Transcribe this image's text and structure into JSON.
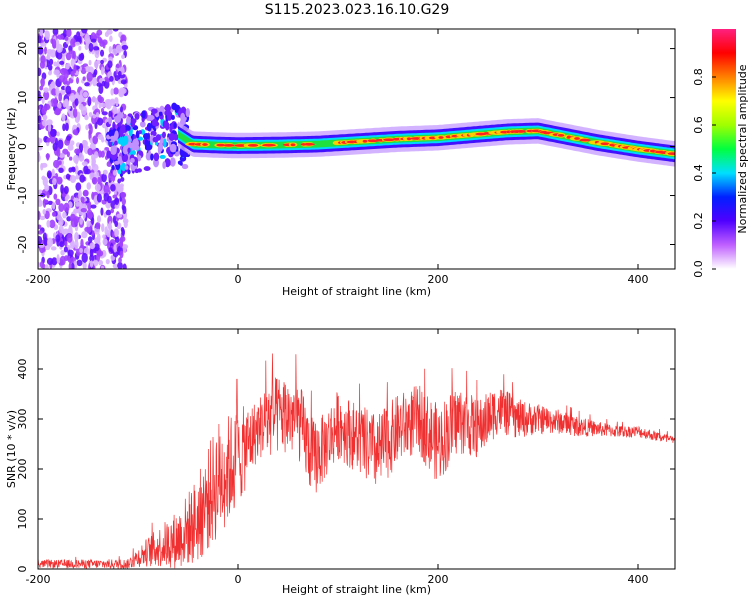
{
  "title": "S115.2023.023.16.10.G29",
  "chart_data": [
    {
      "type": "heatmap",
      "xlabel": "Height of straight line (km)",
      "ylabel": "Frequency (Hz)",
      "xlim": [
        -200,
        437
      ],
      "ylim": [
        -25,
        24
      ],
      "x_ticks": [
        -200,
        0,
        200,
        400
      ],
      "y_ticks": [
        20,
        10,
        0,
        -10,
        -20
      ],
      "colorbar": {
        "label": "Normalized spectral amplitude",
        "range": [
          0,
          1
        ],
        "ticks": [
          "0.0",
          "0.2",
          "0.4",
          "0.6",
          "0.8"
        ],
        "tick_values": [
          0,
          0.2,
          0.4,
          0.6,
          0.8
        ],
        "colors": [
          "#ffffff",
          "#c060ff",
          "#5000ff",
          "#0020ff",
          "#00e0ff",
          "#00ff40",
          "#a0ff00",
          "#ffff00",
          "#ff8000",
          "#ff0000",
          "#ff2080"
        ]
      },
      "ridge": {
        "x": [
          -120,
          -100,
          -80,
          -60,
          -45,
          -20,
          0,
          40,
          80,
          120,
          160,
          200,
          240,
          270,
          300,
          330,
          360,
          400,
          437
        ],
        "y": [
          0.5,
          1.0,
          2.0,
          2.5,
          0.5,
          0.3,
          0.2,
          0.3,
          0.5,
          1.0,
          1.5,
          1.8,
          2.5,
          3.0,
          3.2,
          2.0,
          0.8,
          -0.5,
          -1.5
        ]
      },
      "note_regions": {
        "noise_x": [
          -200,
          -120
        ],
        "scatter_x": [
          -130,
          -50
        ]
      }
    },
    {
      "type": "line",
      "xlabel": "Height of straight line (km)",
      "ylabel": "SNR (10 * v/v)",
      "xlim": [
        -200,
        437
      ],
      "ylim": [
        0,
        480
      ],
      "x_ticks": [
        -200,
        0,
        200,
        400
      ],
      "y_ticks": [
        0,
        100,
        200,
        300,
        400
      ],
      "color": "#f03030",
      "envelope": {
        "x": [
          -200,
          -110,
          -95,
          -60,
          -40,
          -20,
          0,
          20,
          30,
          45,
          60,
          75,
          85,
          100,
          120,
          140,
          160,
          180,
          200,
          220,
          240,
          260,
          280,
          300,
          320,
          340,
          360,
          380,
          400,
          420,
          437
        ],
        "base": [
          10,
          10,
          30,
          60,
          100,
          180,
          220,
          280,
          300,
          310,
          300,
          220,
          240,
          290,
          260,
          230,
          280,
          300,
          250,
          300,
          280,
          320,
          300,
          300,
          295,
          285,
          280,
          275,
          275,
          265,
          255
        ],
        "spread": [
          8,
          10,
          25,
          60,
          90,
          120,
          100,
          60,
          80,
          80,
          80,
          80,
          70,
          70,
          70,
          80,
          70,
          70,
          80,
          70,
          60,
          50,
          40,
          30,
          25,
          20,
          15,
          12,
          12,
          10,
          10
        ]
      }
    }
  ]
}
